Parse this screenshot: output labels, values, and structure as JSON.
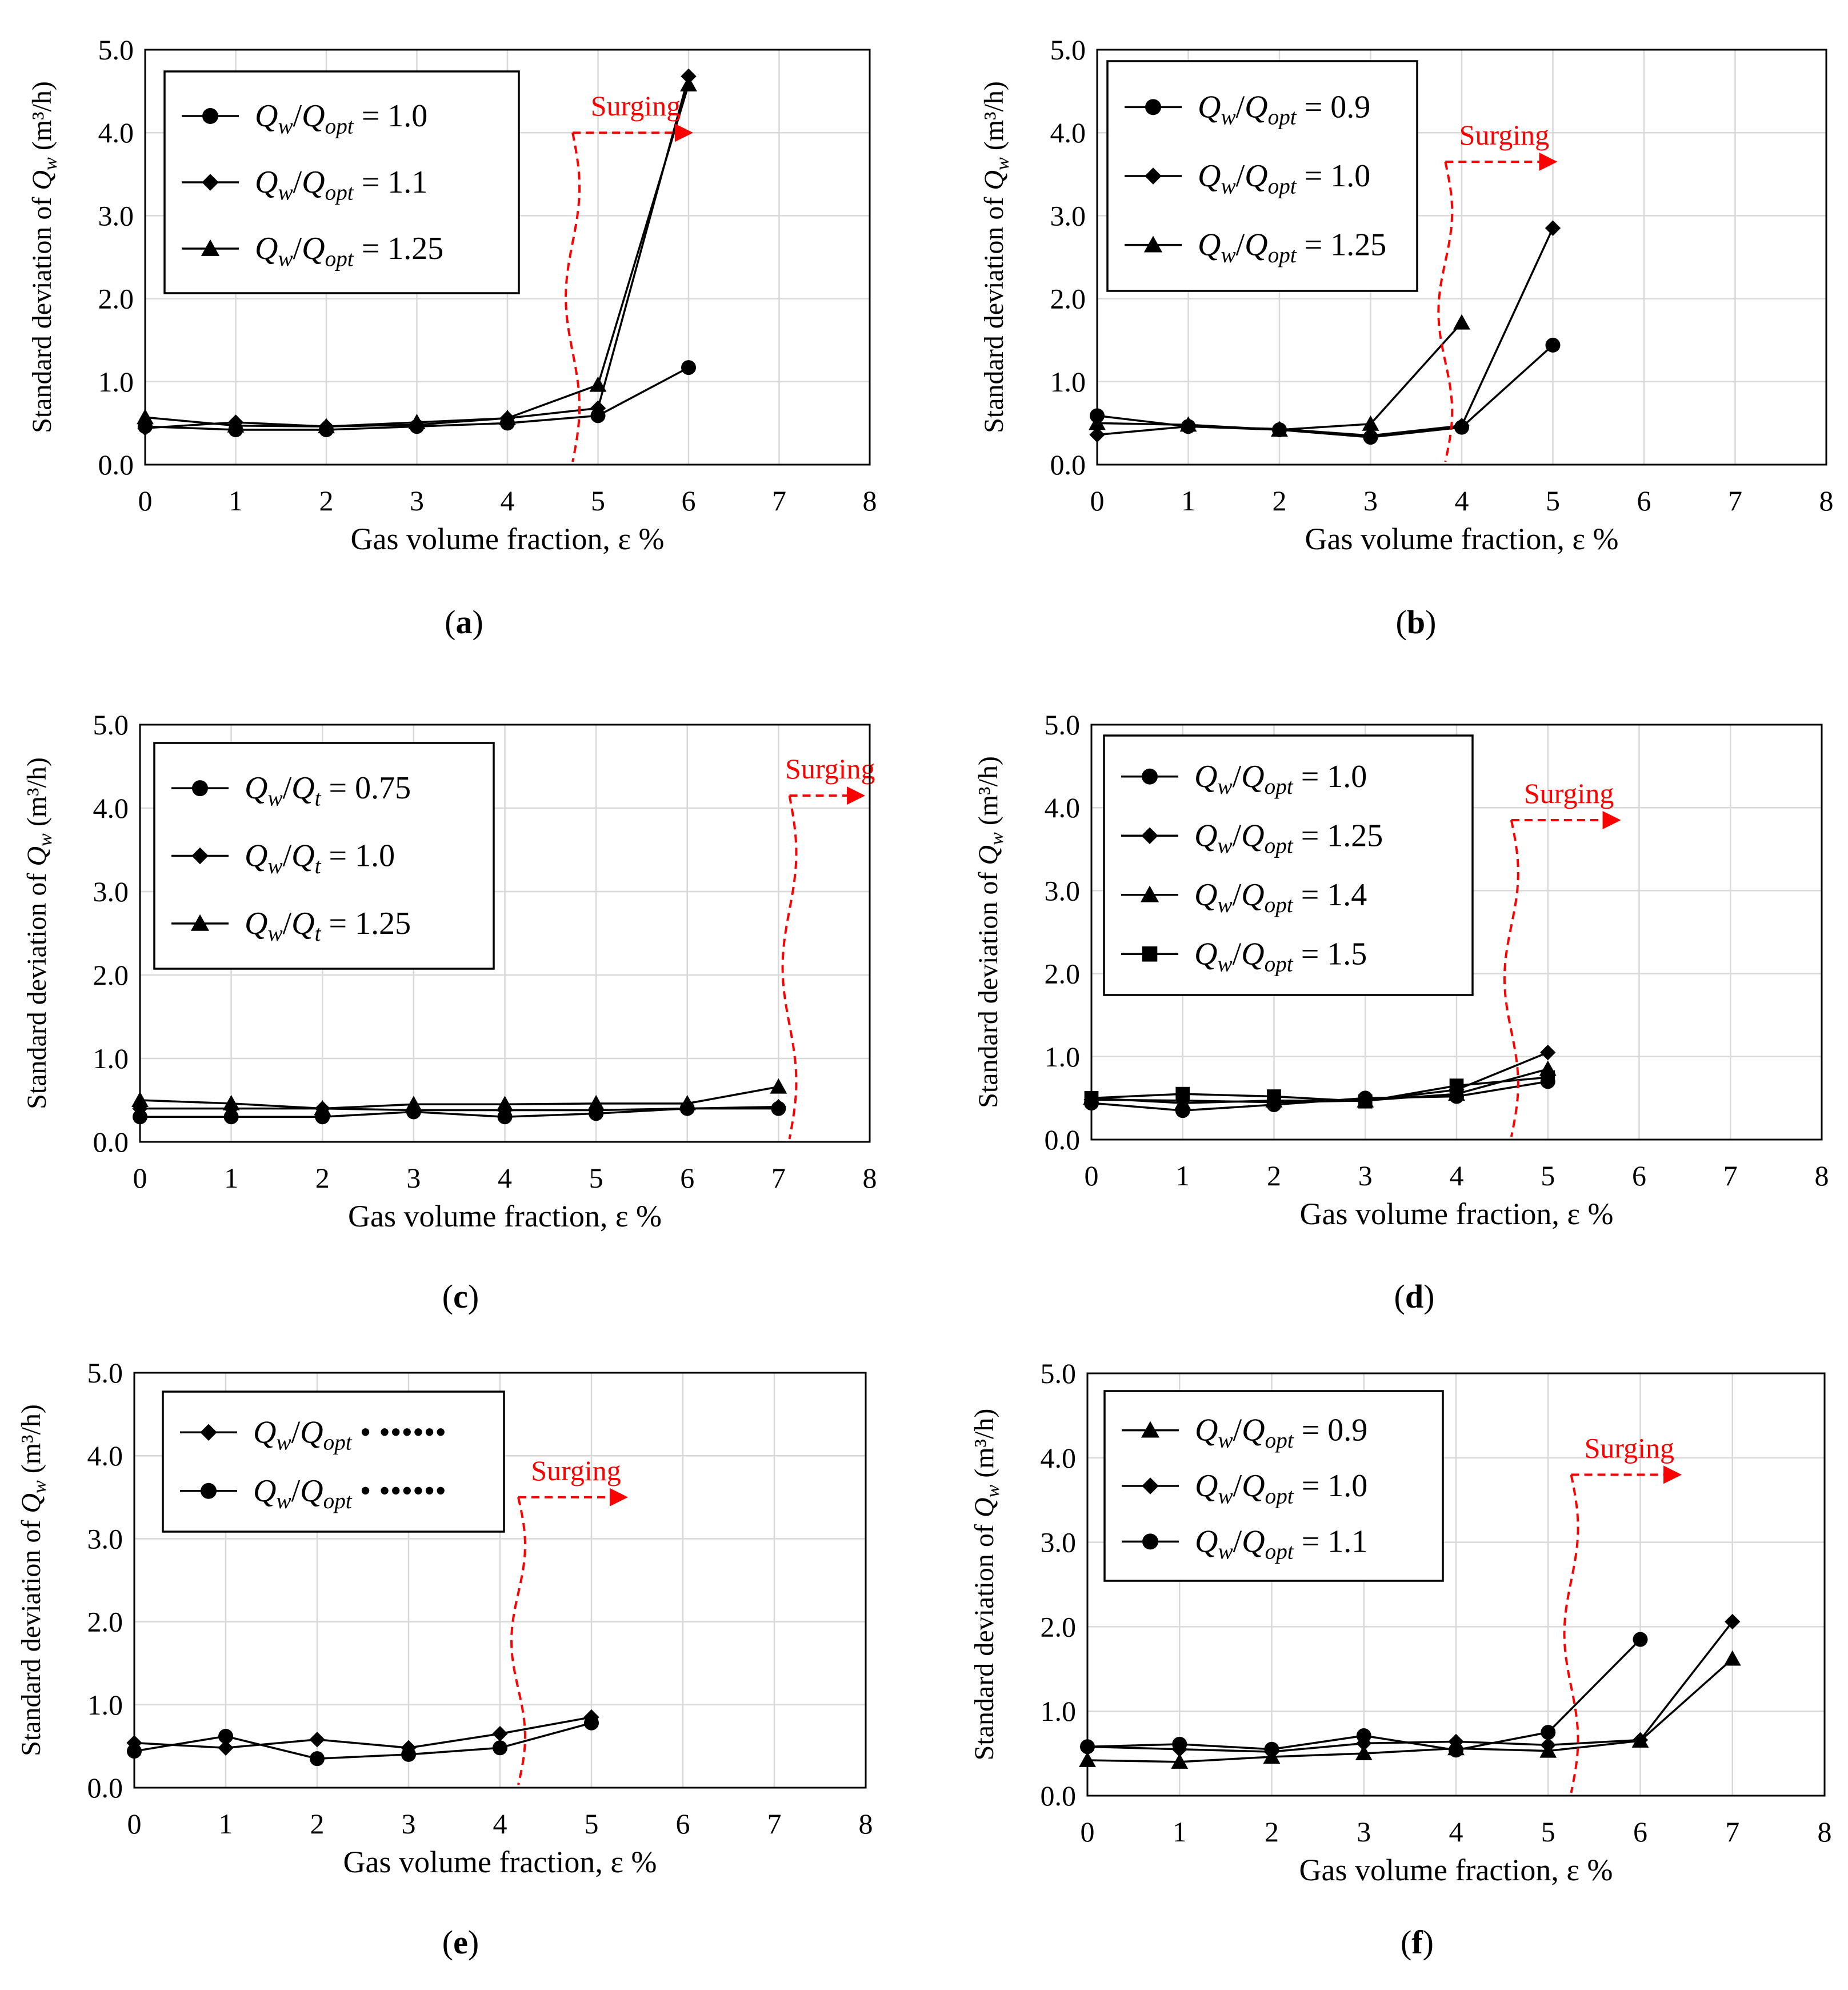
{
  "colors": {
    "line": "#000000",
    "grid": "#d9d9d9",
    "surging": "#ff0000"
  },
  "chart_data": [
    {
      "id": "a",
      "type": "line",
      "caption_label": "a",
      "xlabel": "Gas volume fraction, ε  %",
      "ylabel_prefix": "Standard deviation of ",
      "ylabel_var": "Q",
      "ylabel_sub": "w",
      "ylabel_unit": " (m³/h)",
      "xlim": [
        0,
        8
      ],
      "ylim": [
        0,
        5
      ],
      "xticks": [
        "0",
        "1",
        "2",
        "3",
        "4",
        "5",
        "6",
        "7",
        "8"
      ],
      "yticks": [
        "0.0",
        "1.0",
        "2.0",
        "3.0",
        "4.0",
        "5.0"
      ],
      "grid": true,
      "legend_position": "top-left",
      "surging": {
        "label": "Surging",
        "x": 4.72,
        "arrow_to_x": 6.05,
        "arrow_y": 4.0
      },
      "series": [
        {
          "marker": "circle",
          "legend": {
            "num": "Q",
            "num_sub": "w",
            "den": "Q",
            "den_sub": "opt",
            "value": "= 1.0"
          },
          "x": [
            0,
            1,
            2,
            3,
            4,
            5,
            6
          ],
          "y": [
            0.46,
            0.42,
            0.42,
            0.46,
            0.5,
            0.59,
            1.17
          ]
        },
        {
          "marker": "diamond",
          "legend": {
            "num": "Q",
            "num_sub": "w",
            "den": "Q",
            "den_sub": "opt",
            "value": "= 1.1"
          },
          "x": [
            0,
            1,
            2,
            3,
            4,
            5,
            6
          ],
          "y": [
            0.44,
            0.51,
            0.46,
            0.48,
            0.56,
            0.68,
            4.68
          ]
        },
        {
          "marker": "triangle",
          "legend": {
            "num": "Q",
            "num_sub": "w",
            "den": "Q",
            "den_sub": "opt",
            "value": "= 1.25"
          },
          "x": [
            0,
            1,
            2,
            3,
            4,
            5,
            6
          ],
          "y": [
            0.57,
            0.47,
            0.46,
            0.51,
            0.56,
            0.96,
            4.58
          ]
        }
      ]
    },
    {
      "id": "b",
      "type": "line",
      "caption_label": "b",
      "xlabel": "Gas volume fraction, ε  %",
      "ylabel_prefix": "Standard deviation of ",
      "ylabel_var": "Q",
      "ylabel_sub": "w",
      "ylabel_unit": " (m³/h)",
      "xlim": [
        0,
        8
      ],
      "ylim": [
        0,
        5
      ],
      "xticks": [
        "0",
        "1",
        "2",
        "3",
        "4",
        "5",
        "6",
        "7",
        "8"
      ],
      "yticks": [
        "0.0",
        "1.0",
        "2.0",
        "3.0",
        "4.0",
        "5.0"
      ],
      "grid": true,
      "legend_position": "top-left",
      "surging": {
        "label": "Surging",
        "x": 3.82,
        "arrow_to_x": 5.05,
        "arrow_y": 3.65
      },
      "series": [
        {
          "marker": "circle",
          "legend": {
            "num": "Q",
            "num_sub": "w",
            "den": "Q",
            "den_sub": "opt",
            "value": "= 0.9"
          },
          "x": [
            0,
            1,
            2,
            3,
            4,
            5
          ],
          "y": [
            0.59,
            0.46,
            0.42,
            0.33,
            0.45,
            1.44
          ]
        },
        {
          "marker": "diamond",
          "legend": {
            "num": "Q",
            "num_sub": "w",
            "den": "Q",
            "den_sub": "opt",
            "value": "= 1.0"
          },
          "x": [
            0,
            1,
            2,
            3,
            4,
            5
          ],
          "y": [
            0.36,
            0.46,
            0.43,
            0.35,
            0.47,
            2.85
          ]
        },
        {
          "marker": "triangle",
          "legend": {
            "num": "Q",
            "num_sub": "w",
            "den": "Q",
            "den_sub": "opt",
            "value": "= 1.25"
          },
          "x": [
            0,
            1,
            2,
            3,
            4
          ],
          "y": [
            0.5,
            0.48,
            0.42,
            0.49,
            1.71
          ]
        }
      ]
    },
    {
      "id": "c",
      "type": "line",
      "caption_label": "c",
      "xlabel": "Gas volume fraction, ε  %",
      "ylabel_prefix": "Standard deviation of ",
      "ylabel_var": "Q",
      "ylabel_sub": "w",
      "ylabel_unit": " (m³/h)",
      "xlim": [
        0,
        8
      ],
      "ylim": [
        0,
        5
      ],
      "xticks": [
        "0",
        "1",
        "2",
        "3",
        "4",
        "5",
        "6",
        "7",
        "8"
      ],
      "yticks": [
        "0.0",
        "1.0",
        "2.0",
        "3.0",
        "4.0",
        "5.0"
      ],
      "grid": true,
      "legend_position": "top-left",
      "surging": {
        "label": "Surging",
        "x": 7.12,
        "arrow_to_x": 7.95,
        "arrow_y": 4.15
      },
      "series": [
        {
          "marker": "circle",
          "legend": {
            "num": "Q",
            "num_sub": "w",
            "den": "Q",
            "den_sub": "t",
            "value": "= 0.75"
          },
          "x": [
            0,
            1,
            2,
            3,
            4,
            5,
            6,
            7
          ],
          "y": [
            0.3,
            0.3,
            0.3,
            0.36,
            0.3,
            0.34,
            0.4,
            0.4
          ]
        },
        {
          "marker": "diamond",
          "legend": {
            "num": "Q",
            "num_sub": "w",
            "den": "Q",
            "den_sub": "t",
            "value": "= 1.0"
          },
          "x": [
            0,
            1,
            2,
            3,
            4,
            5,
            6,
            7
          ],
          "y": [
            0.4,
            0.4,
            0.4,
            0.38,
            0.38,
            0.38,
            0.4,
            0.42
          ]
        },
        {
          "marker": "triangle",
          "legend": {
            "num": "Q",
            "num_sub": "w",
            "den": "Q",
            "den_sub": "t",
            "value": "= 1.25"
          },
          "x": [
            0,
            1,
            2,
            3,
            4,
            5,
            6,
            7
          ],
          "y": [
            0.5,
            0.46,
            0.4,
            0.45,
            0.45,
            0.46,
            0.46,
            0.66
          ]
        }
      ]
    },
    {
      "id": "d",
      "type": "line",
      "caption_label": "d",
      "xlabel": "Gas volume fraction, ε  %",
      "ylabel_prefix": "Standard deviation of ",
      "ylabel_var": "Q",
      "ylabel_sub": "w",
      "ylabel_unit": " (m³/h)",
      "xlim": [
        0,
        8
      ],
      "ylim": [
        0,
        5
      ],
      "xticks": [
        "0",
        "1",
        "2",
        "3",
        "4",
        "5",
        "6",
        "7",
        "8"
      ],
      "yticks": [
        "0.0",
        "1.0",
        "2.0",
        "3.0",
        "4.0",
        "5.0"
      ],
      "grid": true,
      "legend_position": "top-left",
      "surging": {
        "label": "Surging",
        "x": 4.6,
        "arrow_to_x": 5.8,
        "arrow_y": 3.85
      },
      "series": [
        {
          "marker": "circle",
          "legend": {
            "num": "Q",
            "num_sub": "w",
            "den": "Q",
            "den_sub": "opt",
            "value": "= 1.0"
          },
          "x": [
            0,
            1,
            2,
            3,
            4,
            5
          ],
          "y": [
            0.44,
            0.35,
            0.42,
            0.5,
            0.52,
            0.7
          ]
        },
        {
          "marker": "diamond",
          "legend": {
            "num": "Q",
            "num_sub": "w",
            "den": "Q",
            "den_sub": "opt",
            "value": "= 1.25"
          },
          "x": [
            0,
            1,
            2,
            3,
            4,
            5
          ],
          "y": [
            0.48,
            0.47,
            0.45,
            0.47,
            0.6,
            1.05
          ]
        },
        {
          "marker": "triangle",
          "legend": {
            "num": "Q",
            "num_sub": "w",
            "den": "Q",
            "den_sub": "opt",
            "value": "= 1.4"
          },
          "x": [
            0,
            1,
            2,
            3,
            4,
            5
          ],
          "y": [
            0.5,
            0.44,
            0.47,
            0.47,
            0.55,
            0.85
          ]
        },
        {
          "marker": "square",
          "legend": {
            "num": "Q",
            "num_sub": "w",
            "den": "Q",
            "den_sub": "opt",
            "value": "= 1.5"
          },
          "x": [
            0,
            1,
            2,
            3,
            4,
            5
          ],
          "y": [
            0.5,
            0.55,
            0.52,
            0.46,
            0.65,
            0.75
          ]
        }
      ]
    },
    {
      "id": "e",
      "type": "line",
      "caption_label": "e",
      "xlabel": "Gas volume fraction, ε %",
      "ylabel_prefix": "Standard deviation of ",
      "ylabel_var": "Q",
      "ylabel_sub": "w",
      "ylabel_unit": " (m³/h)",
      "xlim": [
        0,
        8
      ],
      "ylim": [
        0,
        5
      ],
      "xticks": [
        "0",
        "1",
        "2",
        "3",
        "4",
        "5",
        "6",
        "7",
        "8"
      ],
      "yticks": [
        "0.0",
        "1.0",
        "2.0",
        "3.0",
        "4.0",
        "5.0"
      ],
      "grid": true,
      "legend_position": "top-left",
      "surging": {
        "label": "Surging",
        "x": 4.2,
        "arrow_to_x": 5.4,
        "arrow_y": 3.5
      },
      "series": [
        {
          "marker": "diamond",
          "legend": {
            "num": "Q",
            "num_sub": "w",
            "den": "Q",
            "den_sub": "opt",
            "value": "• ••••••"
          },
          "x": [
            0,
            1,
            2,
            3,
            4,
            5
          ],
          "y": [
            0.54,
            0.48,
            0.58,
            0.48,
            0.65,
            0.85
          ]
        },
        {
          "marker": "circle",
          "legend": {
            "num": "Q",
            "num_sub": "w",
            "den": "Q",
            "den_sub": "opt",
            "value": "• ••••••"
          },
          "x": [
            0,
            1,
            2,
            3,
            4,
            5
          ],
          "y": [
            0.44,
            0.62,
            0.35,
            0.4,
            0.48,
            0.78
          ]
        }
      ]
    },
    {
      "id": "f",
      "type": "line",
      "caption_label": "f",
      "xlabel": "Gas volume fraction, ε %",
      "ylabel_prefix": "Standard deviation of ",
      "ylabel_var": "Q",
      "ylabel_sub": "w",
      "ylabel_unit": " (m³/h)",
      "xlim": [
        0,
        8
      ],
      "ylim": [
        0,
        5
      ],
      "xticks": [
        "0",
        "1",
        "2",
        "3",
        "4",
        "5",
        "6",
        "7",
        "8"
      ],
      "yticks": [
        "0.0",
        "1.0",
        "2.0",
        "3.0",
        "4.0",
        "5.0"
      ],
      "grid": true,
      "legend_position": "top-left",
      "surging": {
        "label": "Surging",
        "x": 5.25,
        "arrow_to_x": 6.45,
        "arrow_y": 3.8
      },
      "series": [
        {
          "marker": "triangle",
          "legend": {
            "num": "Q",
            "num_sub": "w",
            "den": "Q",
            "den_sub": "opt",
            "value": "= 0.9"
          },
          "x": [
            0,
            1,
            2,
            3,
            4,
            5,
            6,
            7
          ],
          "y": [
            0.42,
            0.4,
            0.46,
            0.5,
            0.56,
            0.53,
            0.65,
            1.62
          ]
        },
        {
          "marker": "diamond",
          "legend": {
            "num": "Q",
            "num_sub": "w",
            "den": "Q",
            "den_sub": "opt",
            "value": "= 1.0"
          },
          "x": [
            0,
            1,
            2,
            3,
            4,
            5,
            6,
            7
          ],
          "y": [
            0.58,
            0.55,
            0.52,
            0.62,
            0.64,
            0.6,
            0.66,
            2.06
          ]
        },
        {
          "marker": "circle",
          "legend": {
            "num": "Q",
            "num_sub": "w",
            "den": "Q",
            "den_sub": "opt",
            "value": "= 1.1"
          },
          "x": [
            0,
            1,
            2,
            3,
            4,
            5,
            6
          ],
          "y": [
            0.58,
            0.61,
            0.55,
            0.71,
            0.54,
            0.75,
            1.85
          ]
        }
      ]
    }
  ]
}
